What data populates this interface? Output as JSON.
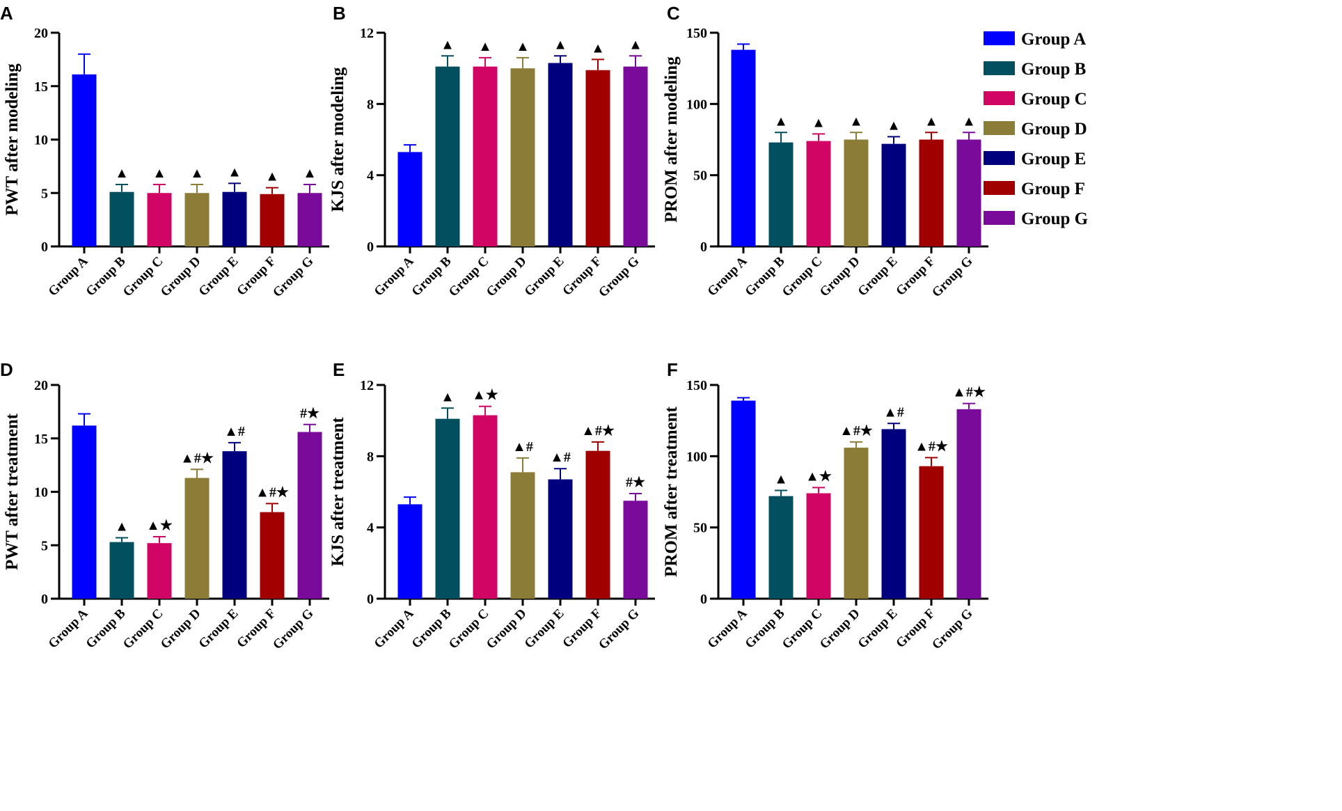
{
  "chart_data": [
    {
      "panel": "A",
      "type": "bar",
      "ylabel": "PWT after modeling",
      "ylim": [
        0,
        20
      ],
      "yticks": [
        0,
        5,
        10,
        15,
        20
      ],
      "categories": [
        "Group A",
        "Group B",
        "Group C",
        "Group D",
        "Group E",
        "Group F",
        "Group G"
      ],
      "values": [
        16.1,
        5.1,
        5.0,
        5.0,
        5.1,
        4.9,
        5.0
      ],
      "errors": [
        1.9,
        0.7,
        0.8,
        0.8,
        0.8,
        0.6,
        0.8
      ],
      "annotations": [
        "",
        "▲",
        "▲",
        "▲",
        "▲",
        "▲",
        "▲"
      ]
    },
    {
      "panel": "B",
      "type": "bar",
      "ylabel": "KJS after modeling",
      "ylim": [
        0,
        12
      ],
      "yticks": [
        0,
        4,
        8,
        12
      ],
      "categories": [
        "Group A",
        "Group B",
        "Group C",
        "Group D",
        "Group E",
        "Group F",
        "Group G"
      ],
      "values": [
        5.3,
        10.1,
        10.1,
        10.0,
        10.3,
        9.9,
        10.1
      ],
      "errors": [
        0.4,
        0.6,
        0.5,
        0.6,
        0.4,
        0.6,
        0.6
      ],
      "annotations": [
        "",
        "▲",
        "▲",
        "▲",
        "▲",
        "▲",
        "▲"
      ]
    },
    {
      "panel": "C",
      "type": "bar",
      "ylabel": "PROM after modeling",
      "ylim": [
        0,
        150
      ],
      "yticks": [
        0,
        50,
        100,
        150
      ],
      "categories": [
        "Group A",
        "Group B",
        "Group C",
        "Group D",
        "Group E",
        "Group F",
        "Group G"
      ],
      "values": [
        138,
        73,
        74,
        75,
        72,
        75,
        75
      ],
      "errors": [
        4,
        7,
        5,
        5,
        5,
        5,
        5
      ],
      "annotations": [
        "",
        "▲",
        "▲",
        "▲",
        "▲",
        "▲",
        "▲"
      ]
    },
    {
      "panel": "D",
      "type": "bar",
      "ylabel": "PWT after treatment",
      "ylim": [
        0,
        20
      ],
      "yticks": [
        0,
        5,
        10,
        15,
        20
      ],
      "categories": [
        "Group A",
        "Group B",
        "Group C",
        "Group D",
        "Group E",
        "Group F",
        "Group G"
      ],
      "values": [
        16.2,
        5.3,
        5.2,
        11.3,
        13.8,
        8.1,
        15.6
      ],
      "errors": [
        1.1,
        0.4,
        0.6,
        0.8,
        0.8,
        0.8,
        0.7
      ],
      "annotations": [
        "",
        "▲",
        "▲★",
        "▲#★",
        "▲#",
        "▲#★",
        "#★"
      ]
    },
    {
      "panel": "E",
      "type": "bar",
      "ylabel": "KJS after treatment",
      "ylim": [
        0,
        12
      ],
      "yticks": [
        0,
        4,
        8,
        12
      ],
      "categories": [
        "Group A",
        "Group B",
        "Group C",
        "Group D",
        "Group E",
        "Group F",
        "Group G"
      ],
      "values": [
        5.3,
        10.1,
        10.3,
        7.1,
        6.7,
        8.3,
        5.5
      ],
      "errors": [
        0.4,
        0.6,
        0.5,
        0.8,
        0.6,
        0.5,
        0.4
      ],
      "annotations": [
        "",
        "▲",
        "▲★",
        "▲#",
        "▲#",
        "▲#★",
        "#★"
      ]
    },
    {
      "panel": "F",
      "type": "bar",
      "ylabel": "PROM after treatment",
      "ylim": [
        0,
        150
      ],
      "yticks": [
        0,
        50,
        100,
        150
      ],
      "categories": [
        "Group A",
        "Group B",
        "Group C",
        "Group D",
        "Group E",
        "Group F",
        "Group G"
      ],
      "values": [
        139,
        72,
        74,
        106,
        119,
        93,
        133
      ],
      "errors": [
        2,
        4,
        4,
        4,
        4,
        6,
        4
      ],
      "annotations": [
        "",
        "▲",
        "▲★",
        "▲#★",
        "▲#",
        "▲#★",
        "▲#★"
      ]
    }
  ],
  "legend": {
    "placement": "right",
    "entries": [
      "Group A",
      "Group B",
      "Group C",
      "Group D",
      "Group E",
      "Group F",
      "Group G"
    ],
    "colors": [
      "#0000ff",
      "#02505f",
      "#d10563",
      "#8b7d38",
      "#00007f",
      "#a00000",
      "#7a0a99"
    ]
  }
}
